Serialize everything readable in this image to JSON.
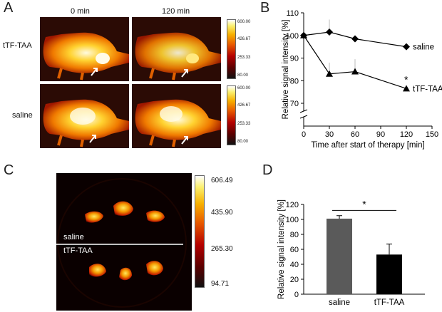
{
  "panel_a": {
    "letter": "A",
    "col_labels": [
      "0 min",
      "120 min"
    ],
    "row_labels": [
      "tTF-TAA",
      "saline"
    ],
    "colorbar_ticks": [
      "600.00",
      "426.67",
      "253.33",
      "80.00"
    ]
  },
  "panel_c": {
    "letter": "C",
    "group_labels": [
      "saline",
      "tTF-TAA"
    ],
    "colorbar_ticks": [
      "606.49",
      "435.90",
      "265.30",
      "94.71"
    ]
  },
  "chart_data": [
    {
      "panel": "B",
      "type": "line",
      "xlabel": "Time after start of therapy [min]",
      "ylabel": "Relative signal intensity [%]",
      "xlim": [
        0,
        150
      ],
      "ylim": [
        60,
        110
      ],
      "xticks": [
        "0",
        "30",
        "60",
        "90",
        "120",
        "150"
      ],
      "yticks": [
        "70",
        "80",
        "90",
        "100",
        "110"
      ],
      "y_axis_break": true,
      "series": [
        {
          "name": "saline",
          "marker": "diamond",
          "x": [
            0,
            30,
            60,
            120
          ],
          "values": [
            100,
            101.5,
            98.5,
            95
          ],
          "err_up": [
            0,
            5.5,
            0,
            0
          ]
        },
        {
          "name": "tTF-TAA",
          "marker": "triangle",
          "x": [
            0,
            30,
            60,
            120
          ],
          "values": [
            100,
            83,
            84,
            76.5
          ],
          "err_up": [
            0,
            5,
            5.5,
            0
          ]
        }
      ],
      "annotation": "*"
    },
    {
      "panel": "D",
      "type": "bar",
      "ylabel": "Relative signal intensity [%]",
      "categories": [
        "saline",
        "tTF-TAA"
      ],
      "values": [
        101,
        53
      ],
      "errors": [
        4,
        14
      ],
      "colors": [
        "#5a5a5a",
        "#000000"
      ],
      "ylim": [
        0,
        120
      ],
      "yticks": [
        "0",
        "20",
        "40",
        "60",
        "80",
        "100",
        "120"
      ],
      "annotation": "*"
    }
  ]
}
